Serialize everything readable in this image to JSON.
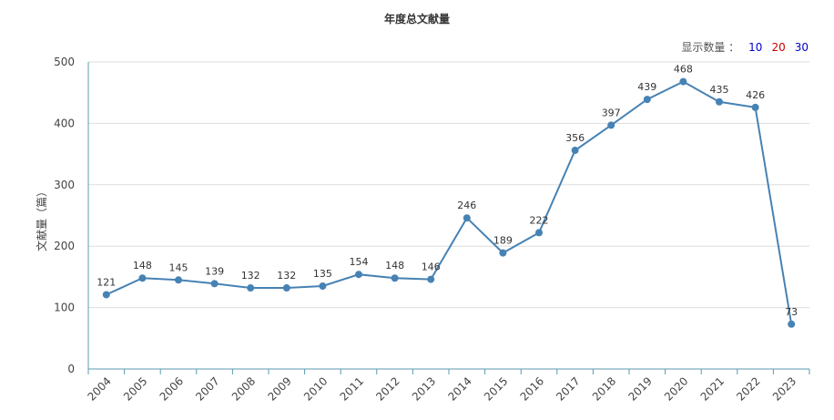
{
  "chart_data": {
    "type": "line",
    "title": "年度总文献量",
    "ylabel": "文献量（篇）",
    "xlabel": "",
    "categories": [
      "2004",
      "2005",
      "2006",
      "2007",
      "2008",
      "2009",
      "2010",
      "2011",
      "2012",
      "2013",
      "2014",
      "2015",
      "2016",
      "2017",
      "2018",
      "2019",
      "2020",
      "2021",
      "2022",
      "2023"
    ],
    "values": [
      121,
      148,
      145,
      139,
      132,
      132,
      135,
      154,
      148,
      146,
      246,
      189,
      222,
      356,
      397,
      439,
      468,
      435,
      426,
      73
    ],
    "ylim": [
      0,
      500
    ],
    "yticks": [
      0,
      100,
      200,
      300,
      400,
      500
    ],
    "grid": true,
    "line_color": "#4682b4"
  },
  "display_count": {
    "label": "显示数量 ：",
    "options": [
      "10",
      "20",
      "30"
    ]
  }
}
